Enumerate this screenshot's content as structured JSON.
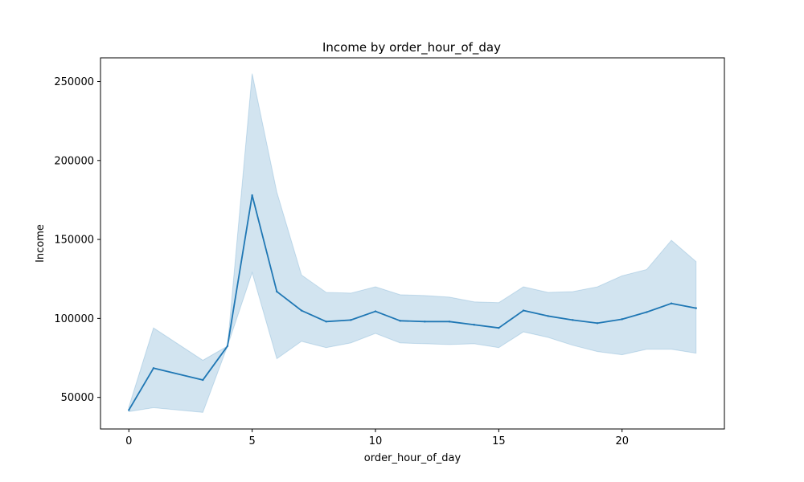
{
  "chart_data": {
    "type": "line",
    "title": "Income by order_hour_of_day",
    "xlabel": "order_hour_of_day",
    "ylabel": "Income",
    "xlim": [
      -1.15,
      24.15
    ],
    "ylim": [
      30000,
      265000
    ],
    "x_ticks": [
      0,
      5,
      10,
      15,
      20
    ],
    "y_ticks": [
      50000,
      100000,
      150000,
      200000,
      250000
    ],
    "grid": false,
    "legend": "none",
    "colors": {
      "line": "#1f77b4",
      "band": "#1f77b4"
    },
    "series": [
      {
        "x": [
          0,
          1,
          3,
          4,
          5,
          6,
          7,
          8,
          9,
          10,
          11,
          12,
          13,
          14,
          15,
          16,
          17,
          18,
          19,
          20,
          21,
          22,
          23
        ],
        "values": [
          42000,
          68500,
          61000,
          82500,
          178000,
          117000,
          105000,
          98000,
          99000,
          104500,
          98500,
          98000,
          98000,
          96000,
          94000,
          105000,
          101500,
          99000,
          97000,
          99500,
          104000,
          109500,
          106500
        ],
        "ci_lower": [
          41000,
          43500,
          40500,
          82500,
          129000,
          74500,
          85500,
          81500,
          84500,
          90500,
          84500,
          84000,
          83500,
          84000,
          81500,
          91500,
          88000,
          83000,
          79000,
          77000,
          80500,
          80500,
          78000
        ],
        "ci_upper": [
          44000,
          94000,
          73500,
          82500,
          255000,
          180000,
          127500,
          116500,
          116000,
          120000,
          115000,
          114500,
          113500,
          110500,
          110000,
          120000,
          116500,
          117000,
          120000,
          127000,
          131000,
          149500,
          136000
        ]
      }
    ]
  }
}
